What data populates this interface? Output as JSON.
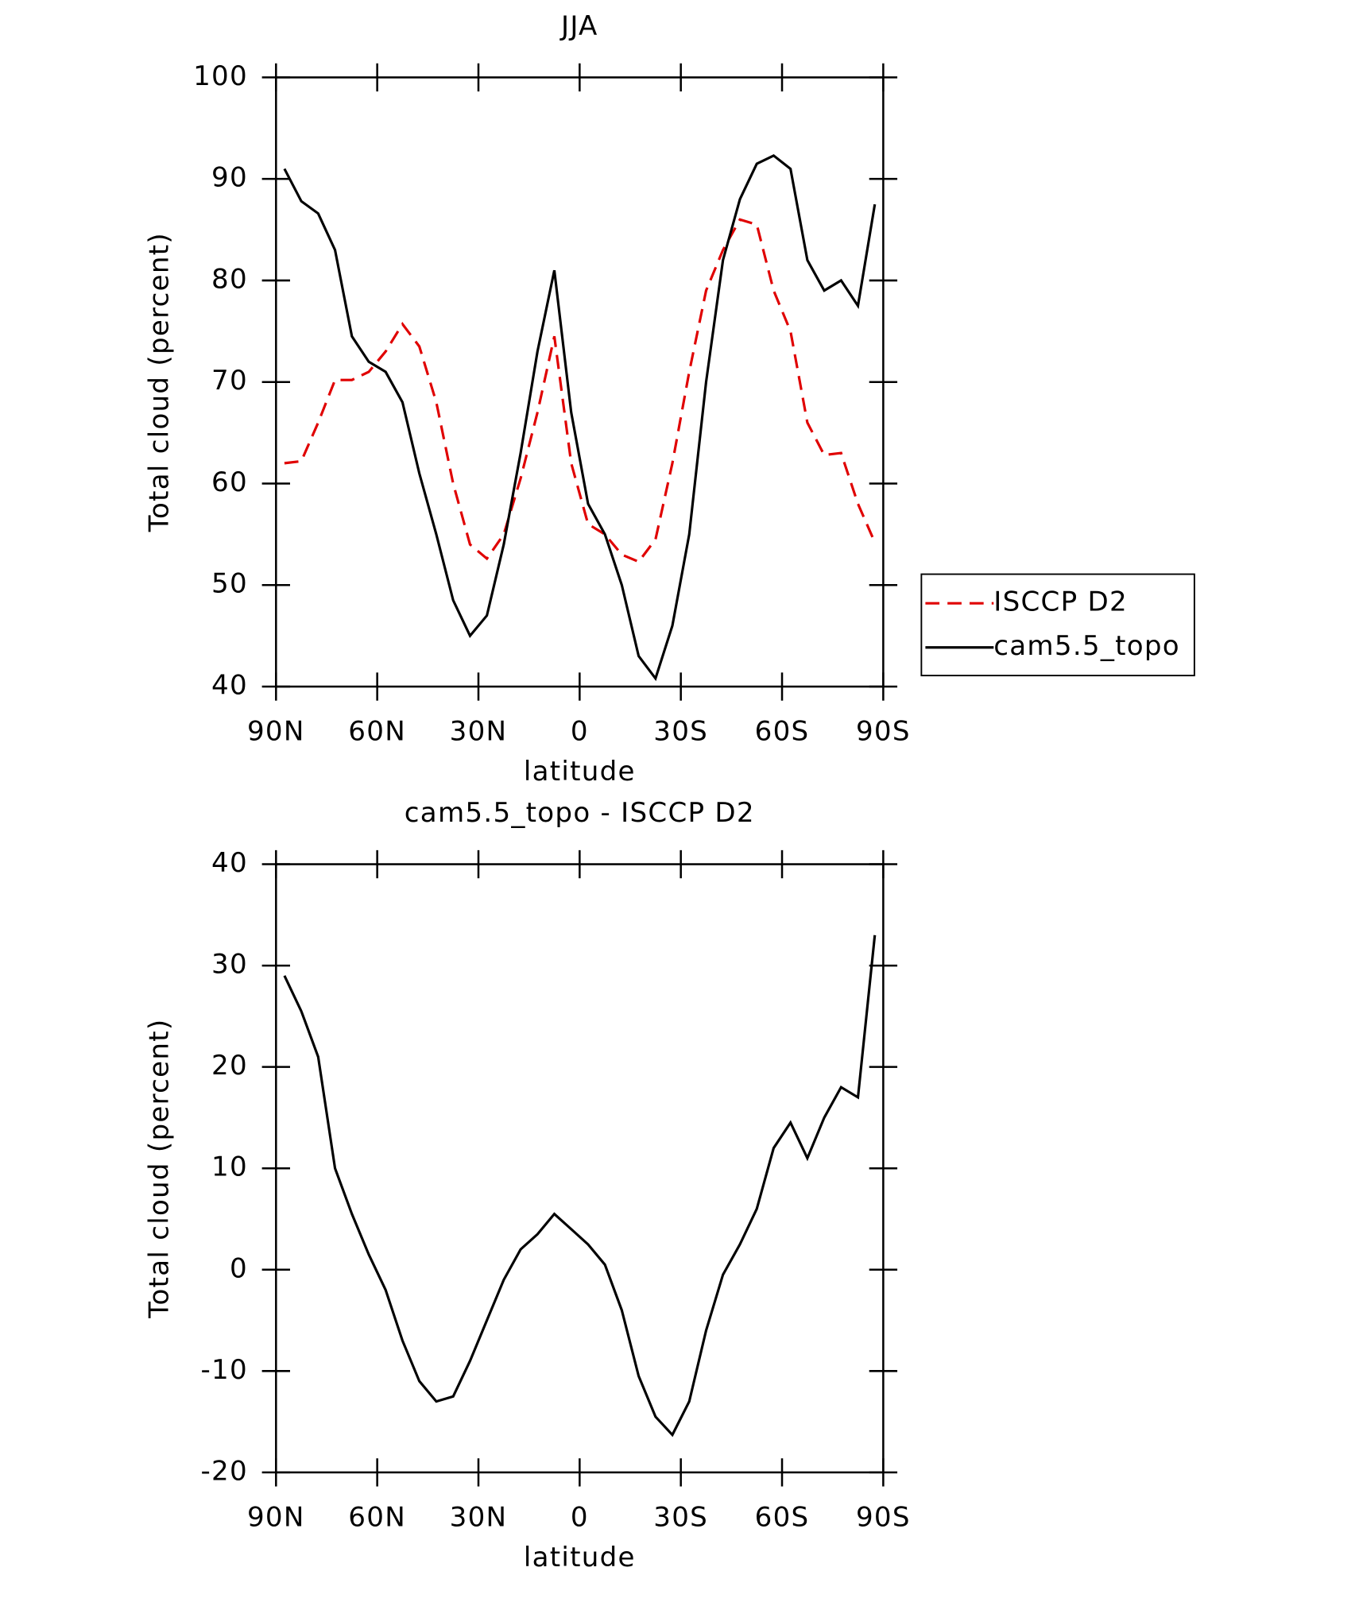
{
  "chart_data": [
    {
      "type": "line",
      "title": "JJA",
      "xlabel": "latitude",
      "ylabel": "Total cloud (percent)",
      "x": [
        87.5,
        82.5,
        77.5,
        72.5,
        67.5,
        62.5,
        57.5,
        52.5,
        47.5,
        42.5,
        37.5,
        32.5,
        27.5,
        22.5,
        17.5,
        12.5,
        7.5,
        2.5,
        -2.5,
        -7.5,
        -12.5,
        -17.5,
        -22.5,
        -27.5,
        -32.5,
        -37.5,
        -42.5,
        -47.5,
        -52.5,
        -57.5,
        -62.5,
        -67.5,
        -72.5,
        -77.5,
        -82.5,
        -87.5
      ],
      "xlim": [
        90,
        -90
      ],
      "xticks": [
        {
          "value": 90,
          "label": "90N"
        },
        {
          "value": 60,
          "label": "60N"
        },
        {
          "value": 30,
          "label": "30N"
        },
        0,
        {
          "value": -30,
          "label": "30S"
        },
        {
          "value": -60,
          "label": "60S"
        },
        {
          "value": -90,
          "label": "90S"
        }
      ],
      "ylim": [
        40,
        100
      ],
      "yticks": [
        40,
        50,
        60,
        70,
        80,
        90,
        100
      ],
      "legend": "right",
      "series": [
        {
          "name": "ISCCP D2",
          "color": "#e00000",
          "dash": true,
          "values": [
            62,
            62.2,
            66,
            70.2,
            70.2,
            71,
            73,
            75.7,
            73.5,
            68,
            60,
            54,
            52.6,
            55,
            60.5,
            67,
            74.5,
            62,
            56,
            55,
            53,
            52.3,
            54.5,
            62,
            71,
            79,
            83,
            86,
            85.5,
            79,
            75,
            66,
            62.8,
            63,
            58,
            54.2
          ]
        },
        {
          "name": "cam5.5_topo",
          "color": "#000000",
          "dash": false,
          "values": [
            91,
            87.8,
            86.6,
            83,
            74.5,
            72,
            71,
            68,
            61,
            55,
            48.5,
            45,
            47,
            54,
            63,
            73,
            81,
            67,
            58,
            55,
            50,
            43,
            40.8,
            46,
            55,
            70,
            82,
            88,
            91.5,
            92.3,
            91,
            82,
            79,
            80,
            77.5,
            87.5
          ]
        }
      ]
    },
    {
      "type": "line",
      "title": "cam5.5_topo - ISCCP D2",
      "xlabel": "latitude",
      "ylabel": "Total cloud (percent)",
      "x": [
        87.5,
        82.5,
        77.5,
        72.5,
        67.5,
        62.5,
        57.5,
        52.5,
        47.5,
        42.5,
        37.5,
        32.5,
        27.5,
        22.5,
        17.5,
        12.5,
        7.5,
        2.5,
        -2.5,
        -7.5,
        -12.5,
        -17.5,
        -22.5,
        -27.5,
        -32.5,
        -37.5,
        -42.5,
        -47.5,
        -52.5,
        -57.5,
        -62.5,
        -67.5,
        -72.5,
        -77.5,
        -82.5,
        -87.5
      ],
      "xlim": [
        90,
        -90
      ],
      "xticks": [
        {
          "value": 90,
          "label": "90N"
        },
        {
          "value": 60,
          "label": "60N"
        },
        {
          "value": 30,
          "label": "30N"
        },
        0,
        {
          "value": -30,
          "label": "30S"
        },
        {
          "value": -60,
          "label": "60S"
        },
        {
          "value": -90,
          "label": "90S"
        }
      ],
      "ylim": [
        -20,
        40
      ],
      "yticks": [
        -20,
        -10,
        0,
        10,
        20,
        30,
        40
      ],
      "series": [
        {
          "color": "#000000",
          "dash": false,
          "values": [
            29,
            25.5,
            21,
            10,
            5.5,
            1.5,
            -2,
            -7,
            -11,
            -13,
            -12.5,
            -9,
            -5,
            -1,
            2,
            3.5,
            5.5,
            4,
            2.5,
            0.5,
            -4,
            -10.5,
            -14.5,
            -16.3,
            -13,
            -6,
            -0.5,
            2.5,
            6,
            12,
            14.5,
            11,
            15,
            18,
            17,
            33
          ]
        }
      ]
    }
  ]
}
